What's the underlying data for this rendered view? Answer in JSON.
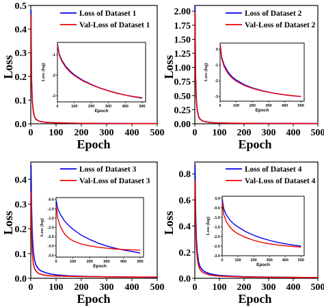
{
  "chart_data": [
    {
      "type": "line",
      "title": "",
      "xlabel": "Epoch",
      "ylabel": "Loss",
      "xlim": [
        0,
        500
      ],
      "ylim": [
        0,
        0.5
      ],
      "xticks": [
        "0",
        "100",
        "200",
        "300",
        "400",
        "500"
      ],
      "yticks": [
        "0.0",
        "0.1",
        "0.2",
        "0.3",
        "0.4",
        "0.5"
      ],
      "legend_position": "top-right",
      "series": [
        {
          "name": "Loss of Dataset 1",
          "color": "#0000ee",
          "x": [
            1,
            3,
            6,
            10,
            15,
            20,
            30,
            40,
            60,
            80,
            100,
            150,
            200,
            300,
            400,
            500
          ],
          "y": [
            0.48,
            0.2,
            0.1,
            0.055,
            0.03,
            0.02,
            0.012,
            0.009,
            0.006,
            0.005,
            0.004,
            0.003,
            0.002,
            0.0015,
            0.001,
            0.001
          ]
        },
        {
          "name": "Val-Loss of Dataset 1",
          "color": "#ee0000",
          "x": [
            1,
            3,
            6,
            10,
            15,
            20,
            30,
            40,
            60,
            80,
            100,
            150,
            200,
            300,
            400,
            500
          ],
          "y": [
            0.46,
            0.19,
            0.095,
            0.052,
            0.029,
            0.019,
            0.012,
            0.009,
            0.006,
            0.005,
            0.004,
            0.003,
            0.002,
            0.0015,
            0.001,
            0.001
          ]
        }
      ],
      "inset": {
        "xlabel": "Epoch",
        "ylabel": "Loss (log)",
        "xlim": [
          0,
          520
        ],
        "ylim": [
          -3.3,
          -0.4
        ],
        "xticks": [
          "0",
          "100",
          "200",
          "300",
          "400",
          "500"
        ],
        "yticks": [
          "-1",
          "-2",
          "-3"
        ],
        "series": [
          {
            "name": "Loss of Dataset 1",
            "color": "#0000ee",
            "x": [
              1,
              10,
              25,
              50,
              75,
              100,
              150,
              200,
              250,
              300,
              350,
              400,
              450,
              500
            ],
            "y": [
              -0.5,
              -0.95,
              -1.25,
              -1.58,
              -1.8,
              -1.98,
              -2.25,
              -2.45,
              -2.62,
              -2.75,
              -2.87,
              -2.97,
              -3.05,
              -3.12
            ]
          },
          {
            "name": "Val-Loss of Dataset 1",
            "color": "#ee0000",
            "x": [
              1,
              10,
              25,
              50,
              75,
              100,
              150,
              200,
              250,
              300,
              350,
              400,
              450,
              500
            ],
            "y": [
              -0.55,
              -1.0,
              -1.3,
              -1.63,
              -1.85,
              -2.02,
              -2.28,
              -2.47,
              -2.63,
              -2.76,
              -2.88,
              -2.97,
              -3.04,
              -3.1
            ]
          }
        ]
      }
    },
    {
      "type": "line",
      "title": "",
      "xlabel": "Epoch",
      "ylabel": "Loss",
      "xlim": [
        0,
        500
      ],
      "ylim": [
        0,
        2.1
      ],
      "xticks": [
        "0",
        "100",
        "200",
        "300",
        "400",
        "500"
      ],
      "yticks": [
        "0.00",
        "0.25",
        "0.50",
        "0.75",
        "1.00",
        "1.25",
        "1.50",
        "1.75",
        "2.00"
      ],
      "legend_position": "top-right",
      "series": [
        {
          "name": "Loss of Dataset 2",
          "color": "#0000ee",
          "x": [
            1,
            3,
            6,
            10,
            15,
            20,
            30,
            40,
            60,
            80,
            100,
            150,
            200,
            300,
            400,
            500
          ],
          "y": [
            2.1,
            0.9,
            0.45,
            0.25,
            0.14,
            0.09,
            0.055,
            0.04,
            0.025,
            0.018,
            0.014,
            0.01,
            0.008,
            0.006,
            0.005,
            0.004
          ]
        },
        {
          "name": "Val-Loss of Dataset 2",
          "color": "#ee0000",
          "x": [
            1,
            3,
            6,
            10,
            15,
            20,
            30,
            40,
            60,
            80,
            100,
            150,
            200,
            300,
            400,
            500
          ],
          "y": [
            2.0,
            0.85,
            0.42,
            0.23,
            0.13,
            0.085,
            0.052,
            0.038,
            0.024,
            0.017,
            0.013,
            0.01,
            0.008,
            0.006,
            0.005,
            0.004
          ]
        }
      ],
      "inset": {
        "xlabel": "Epoch",
        "ylabel": "Loss (log)",
        "xlim": [
          0,
          520
        ],
        "ylim": [
          -3.3,
          0.4
        ],
        "xticks": [
          "0",
          "100",
          "200",
          "300",
          "400",
          "500"
        ],
        "yticks": [
          "0",
          "-1",
          "-2",
          "-3"
        ],
        "series": [
          {
            "name": "Loss of Dataset 2",
            "color": "#0000ee",
            "x": [
              1,
              10,
              25,
              50,
              75,
              100,
              150,
              200,
              250,
              300,
              350,
              400,
              450,
              500
            ],
            "y": [
              0.3,
              -0.5,
              -1.0,
              -1.45,
              -1.75,
              -1.95,
              -2.25,
              -2.45,
              -2.6,
              -2.72,
              -2.82,
              -2.9,
              -2.96,
              -3.0
            ]
          },
          {
            "name": "Val-Loss of Dataset 2",
            "color": "#ee0000",
            "x": [
              1,
              10,
              25,
              50,
              75,
              100,
              150,
              200,
              250,
              300,
              350,
              400,
              450,
              500
            ],
            "y": [
              0.25,
              -0.6,
              -1.1,
              -1.55,
              -1.83,
              -2.02,
              -2.3,
              -2.48,
              -2.62,
              -2.73,
              -2.82,
              -2.89,
              -2.95,
              -3.0
            ]
          }
        ]
      }
    },
    {
      "type": "line",
      "title": "",
      "xlabel": "Epoch",
      "ylabel": "Loss",
      "xlim": [
        0,
        500
      ],
      "ylim": [
        0,
        0.47
      ],
      "xticks": [
        "0",
        "100",
        "200",
        "300",
        "400",
        "500"
      ],
      "yticks": [
        "0.0",
        "0.1",
        "0.2",
        "0.3",
        "0.4"
      ],
      "legend_position": "top-right",
      "series": [
        {
          "name": "Loss of Dataset 3",
          "color": "#0000ee",
          "x": [
            1,
            3,
            6,
            10,
            15,
            20,
            30,
            40,
            60,
            80,
            100,
            150,
            200,
            300,
            400,
            500
          ],
          "y": [
            0.46,
            0.3,
            0.18,
            0.11,
            0.075,
            0.055,
            0.038,
            0.03,
            0.022,
            0.017,
            0.014,
            0.01,
            0.008,
            0.006,
            0.005,
            0.004
          ]
        },
        {
          "name": "Val-Loss of Dataset 3",
          "color": "#ee0000",
          "x": [
            1,
            3,
            6,
            10,
            15,
            20,
            30,
            40,
            60,
            80,
            100,
            150,
            200,
            300,
            400,
            500
          ],
          "y": [
            0.35,
            0.2,
            0.1,
            0.06,
            0.04,
            0.03,
            0.02,
            0.016,
            0.012,
            0.01,
            0.009,
            0.008,
            0.007,
            0.006,
            0.005,
            0.005
          ]
        }
      ],
      "inset": {
        "xlabel": "Epoch",
        "ylabel": "Loss (log)",
        "xlim": [
          0,
          520
        ],
        "ylim": [
          -3.6,
          -0.4
        ],
        "xticks": [
          "0",
          "100",
          "200",
          "300",
          "400",
          "500"
        ],
        "yticks": [
          "-0.5",
          "-1.0",
          "-1.5",
          "-2.0",
          "-2.5",
          "-3.0",
          "-3.5"
        ],
        "series": [
          {
            "name": "Loss of Dataset 3",
            "color": "#0000ee",
            "x": [
              1,
              10,
              25,
              50,
              75,
              100,
              150,
              200,
              250,
              300,
              350,
              400,
              450,
              500
            ],
            "y": [
              -0.55,
              -1.0,
              -1.3,
              -1.65,
              -1.9,
              -2.1,
              -2.42,
              -2.65,
              -2.85,
              -3.0,
              -3.12,
              -3.22,
              -3.3,
              -3.38
            ]
          },
          {
            "name": "Val-Loss of Dataset 3",
            "color": "#ee0000",
            "x": [
              1,
              10,
              25,
              50,
              75,
              100,
              150,
              200,
              250,
              300,
              350,
              400,
              450,
              500
            ],
            "y": [
              -0.85,
              -1.5,
              -1.95,
              -2.35,
              -2.58,
              -2.72,
              -2.9,
              -3.0,
              -3.07,
              -3.12,
              -3.16,
              -3.19,
              -3.21,
              -3.23
            ]
          }
        ]
      }
    },
    {
      "type": "line",
      "title": "",
      "xlabel": "Epoch",
      "ylabel": "Loss",
      "xlim": [
        0,
        500
      ],
      "ylim": [
        0,
        0.89
      ],
      "xticks": [
        "0",
        "100",
        "200",
        "300",
        "400",
        "500"
      ],
      "yticks": [
        "0.0",
        "0.2",
        "0.4",
        "0.6",
        "0.8"
      ],
      "legend_position": "top-right",
      "series": [
        {
          "name": "Loss of Dataset 4",
          "color": "#0000ee",
          "x": [
            1,
            3,
            6,
            10,
            15,
            20,
            30,
            40,
            60,
            80,
            100,
            150,
            200,
            300,
            400,
            500
          ],
          "y": [
            0.87,
            0.55,
            0.32,
            0.2,
            0.13,
            0.095,
            0.065,
            0.05,
            0.035,
            0.027,
            0.022,
            0.016,
            0.012,
            0.009,
            0.007,
            0.006
          ]
        },
        {
          "name": "Val-Loss of Dataset 4",
          "color": "#ee0000",
          "x": [
            1,
            3,
            6,
            10,
            15,
            20,
            30,
            40,
            60,
            80,
            100,
            150,
            200,
            300,
            400,
            500
          ],
          "y": [
            0.75,
            0.45,
            0.25,
            0.15,
            0.1,
            0.07,
            0.048,
            0.037,
            0.026,
            0.02,
            0.017,
            0.013,
            0.01,
            0.008,
            0.007,
            0.006
          ]
        }
      ],
      "inset": {
        "xlabel": "Epoch",
        "ylabel": "Loss (log)",
        "xlim": [
          0,
          520
        ],
        "ylim": [
          -3.0,
          0.1
        ],
        "xticks": [
          "0",
          "100",
          "200",
          "300",
          "400",
          "500"
        ],
        "yticks": [
          "0.0",
          "-0.5",
          "-1.0",
          "-1.5",
          "-2.0",
          "-2.5",
          "-3.0"
        ],
        "series": [
          {
            "name": "Loss of Dataset 4",
            "color": "#0000ee",
            "x": [
              1,
              10,
              25,
              50,
              75,
              100,
              150,
              200,
              250,
              300,
              350,
              400,
              450,
              500
            ],
            "y": [
              -0.05,
              -0.55,
              -0.85,
              -1.15,
              -1.35,
              -1.5,
              -1.75,
              -1.93,
              -2.08,
              -2.2,
              -2.3,
              -2.38,
              -2.44,
              -2.5
            ]
          },
          {
            "name": "Val-Loss of Dataset 4",
            "color": "#ee0000",
            "x": [
              1,
              10,
              25,
              50,
              75,
              100,
              150,
              200,
              250,
              300,
              350,
              400,
              450,
              500
            ],
            "y": [
              -0.2,
              -0.85,
              -1.2,
              -1.52,
              -1.72,
              -1.86,
              -2.05,
              -2.2,
              -2.3,
              -2.38,
              -2.44,
              -2.48,
              -2.52,
              -2.55
            ]
          }
        ]
      }
    }
  ]
}
